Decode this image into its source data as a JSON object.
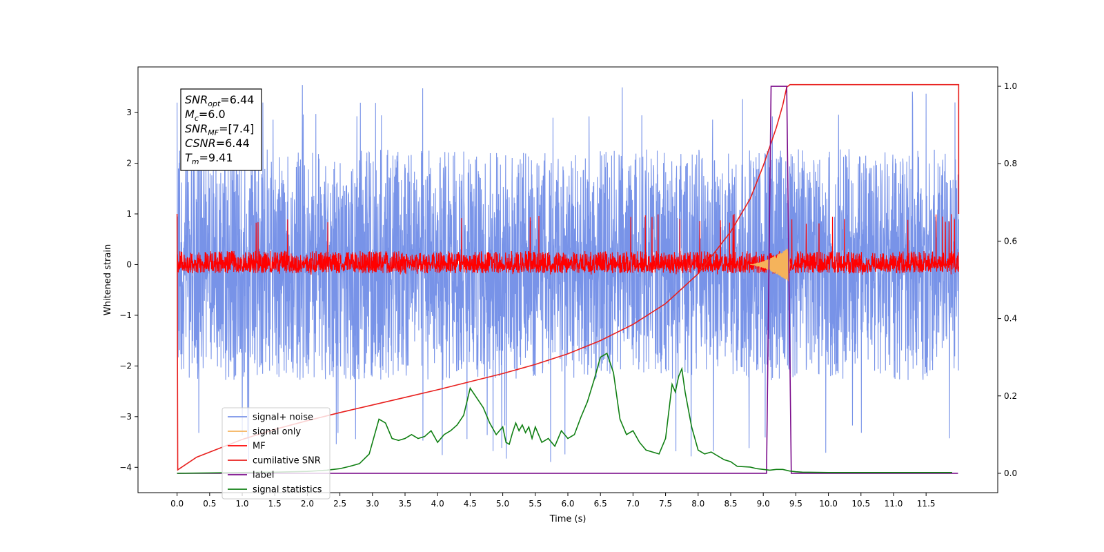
{
  "chart_data": {
    "type": "line",
    "title": "",
    "xlabel": "Time (s)",
    "ylabel": "Whitened strain",
    "xlim": [
      -0.6,
      12.6
    ],
    "ylim": [
      -4.5,
      3.9
    ],
    "y2lim": [
      -0.05,
      1.05
    ],
    "grid": false,
    "legend_position": "lower-left",
    "x_ticks": [
      "0.0",
      "0.5",
      "1.0",
      "1.5",
      "2.0",
      "2.5",
      "3.0",
      "3.5",
      "4.0",
      "4.5",
      "5.0",
      "5.5",
      "6.0",
      "6.5",
      "7.0",
      "7.5",
      "8.0",
      "8.5",
      "9.0",
      "9.5",
      "10.0",
      "10.5",
      "11.0",
      "11.5"
    ],
    "y_ticks": [
      "3",
      "2",
      "1",
      "0",
      "−1",
      "−2",
      "−3",
      "−4"
    ],
    "y2_ticks": [
      "1.0",
      "0.8",
      "0.6",
      "0.4",
      "0.2",
      "0.0"
    ],
    "info_box": {
      "lines": [
        {
          "base": "SNR",
          "sub": "opt",
          "value": "=6.44"
        },
        {
          "base": "M",
          "sub": "c",
          "value": "=6.0"
        },
        {
          "base": "SNR",
          "sub": "MF",
          "value": "=[7.4]"
        },
        {
          "base": "CSNR",
          "sub": "",
          "value": "=6.44"
        },
        {
          "base": "T",
          "sub": "m",
          "value": "=9.41"
        }
      ]
    },
    "series": [
      {
        "name": "signal+ noise",
        "color": "#7893e8",
        "axis": "left",
        "kind": "noise",
        "x_range": [
          0,
          12
        ],
        "envelope": [
          -2.4,
          2.4
        ],
        "extreme": [
          -3.9,
          3.55
        ]
      },
      {
        "name": "signal only",
        "color": "#f5b35b",
        "axis": "left",
        "kind": "chirp",
        "x_range": [
          8.8,
          9.41
        ],
        "max_amplitude": 0.35
      },
      {
        "name": "MF",
        "color": "#ff0000",
        "axis": "left",
        "kind": "noise",
        "x_range": [
          0,
          12
        ],
        "envelope": [
          -0.18,
          0.28
        ],
        "extreme": [
          -0.2,
          1.0
        ]
      },
      {
        "name": "cumilative SNR",
        "color": "#e8201e",
        "axis": "left",
        "x": [
          0.0,
          0.01,
          0.3,
          0.7,
          1.0,
          1.5,
          2.0,
          2.5,
          3.0,
          3.5,
          4.0,
          4.5,
          5.0,
          5.5,
          6.0,
          6.5,
          7.0,
          7.5,
          8.0,
          8.5,
          8.8,
          9.0,
          9.2,
          9.3,
          9.36,
          9.41,
          10.0,
          11.0,
          12.0,
          12.0
        ],
        "y": [
          1.0,
          -4.05,
          -3.8,
          -3.6,
          -3.45,
          -3.25,
          -3.08,
          -2.92,
          -2.77,
          -2.62,
          -2.47,
          -2.31,
          -2.15,
          -1.97,
          -1.76,
          -1.5,
          -1.18,
          -0.77,
          -0.18,
          0.65,
          1.3,
          1.95,
          2.7,
          3.15,
          3.5,
          3.55,
          3.55,
          3.55,
          3.55,
          1.0
        ]
      },
      {
        "name": "label",
        "color": "#7a0a8a",
        "axis": "right",
        "x": [
          0.0,
          9.05,
          9.12,
          9.36,
          9.43,
          11.99
        ],
        "y": [
          0.0,
          0.0,
          1.0,
          1.0,
          0.0,
          0.0
        ]
      },
      {
        "name": "signal statistics",
        "color": "#0f7f12",
        "axis": "right",
        "x": [
          0.0,
          0.5,
          1.0,
          1.5,
          2.0,
          2.3,
          2.5,
          2.65,
          2.8,
          2.95,
          3.1,
          3.2,
          3.3,
          3.4,
          3.5,
          3.6,
          3.7,
          3.8,
          3.9,
          4.0,
          4.1,
          4.2,
          4.3,
          4.4,
          4.5,
          4.6,
          4.7,
          4.8,
          4.9,
          5.0,
          5.05,
          5.1,
          5.15,
          5.2,
          5.25,
          5.3,
          5.35,
          5.4,
          5.45,
          5.5,
          5.6,
          5.7,
          5.8,
          5.9,
          6.0,
          6.1,
          6.2,
          6.3,
          6.4,
          6.5,
          6.6,
          6.7,
          6.8,
          6.9,
          7.0,
          7.1,
          7.2,
          7.3,
          7.4,
          7.5,
          7.6,
          7.65,
          7.7,
          7.75,
          7.8,
          7.9,
          8.0,
          8.1,
          8.2,
          8.4,
          8.5,
          8.6,
          8.8,
          8.9,
          9.0,
          9.1,
          9.2,
          9.3,
          9.4,
          9.5,
          9.6,
          10.0,
          11.0,
          11.5,
          11.9
        ],
        "y": [
          0.0,
          0.001,
          0.002,
          0.003,
          0.005,
          0.008,
          0.012,
          0.018,
          0.025,
          0.05,
          0.14,
          0.13,
          0.09,
          0.085,
          0.09,
          0.1,
          0.09,
          0.095,
          0.11,
          0.08,
          0.1,
          0.11,
          0.125,
          0.15,
          0.22,
          0.195,
          0.17,
          0.13,
          0.1,
          0.12,
          0.08,
          0.075,
          0.105,
          0.13,
          0.11,
          0.125,
          0.105,
          0.12,
          0.09,
          0.12,
          0.08,
          0.09,
          0.07,
          0.11,
          0.09,
          0.1,
          0.145,
          0.185,
          0.24,
          0.3,
          0.31,
          0.26,
          0.14,
          0.1,
          0.11,
          0.08,
          0.06,
          0.055,
          0.05,
          0.09,
          0.23,
          0.21,
          0.25,
          0.27,
          0.21,
          0.12,
          0.06,
          0.05,
          0.055,
          0.035,
          0.03,
          0.018,
          0.016,
          0.012,
          0.01,
          0.008,
          0.01,
          0.01,
          0.006,
          0.004,
          0.003,
          0.002,
          0.002,
          0.002,
          0.002
        ]
      }
    ]
  }
}
